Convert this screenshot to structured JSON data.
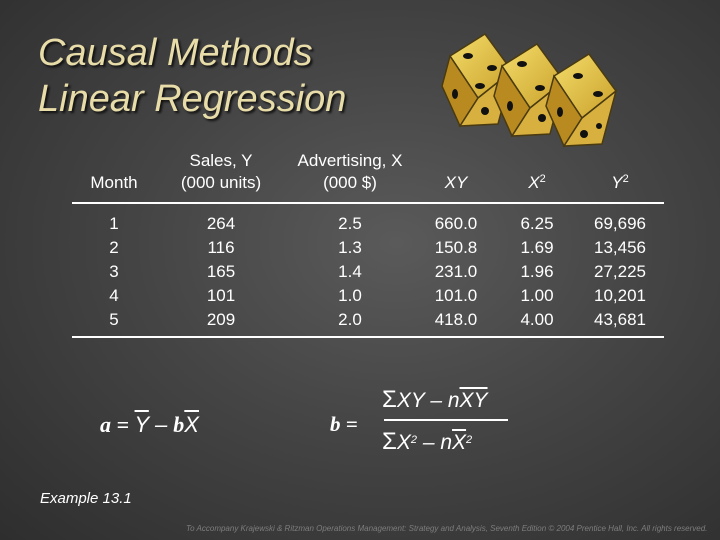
{
  "slide": {
    "title_line1": "Causal Methods",
    "title_line2": "Linear Regression",
    "example_label": "Example 13.1",
    "footer": "To Accompany Krajewski & Ritzman Operations Management: Strategy and Analysis, Seventh Edition © 2004 Prentice Hall, Inc. All rights reserved."
  },
  "table": {
    "headers": {
      "month": "Month",
      "sales_line1": "Sales, Y",
      "sales_line2": "(000 units)",
      "adv_line1": "Advertising, X",
      "adv_line2": "(000 $)",
      "xy": "XY",
      "x2": "X",
      "x2_exp": "2",
      "y2": "Y",
      "y2_exp": "2"
    },
    "rows": [
      {
        "month": "1",
        "sales": "264",
        "advertising": "2.5",
        "xy": "660.0",
        "x2": "6.25",
        "y2": "69,696"
      },
      {
        "month": "2",
        "sales": "116",
        "advertising": "1.3",
        "xy": "150.8",
        "x2": "1.69",
        "y2": "13,456"
      },
      {
        "month": "3",
        "sales": "165",
        "advertising": "1.4",
        "xy": "231.0",
        "x2": "1.96",
        "y2": "27,225"
      },
      {
        "month": "4",
        "sales": "101",
        "advertising": "1.0",
        "xy": "101.0",
        "x2": "1.00",
        "y2": "10,201"
      },
      {
        "month": "5",
        "sales": "209",
        "advertising": "2.0",
        "xy": "418.0",
        "x2": "4.00",
        "y2": "43,681"
      }
    ]
  },
  "formulas": {
    "a": {
      "lhs": "a = ",
      "ybar": "Y",
      "minus": " – ",
      "b": "b",
      "xbar": "X"
    },
    "b": {
      "lhs": "b =",
      "sigma": "Σ",
      "num_term": "XY – ",
      "num_n": "n",
      "num_bars": "XY",
      "den_term": "X",
      "den_exp": "2",
      "den_minus": " – ",
      "den_n": "n",
      "den_bar": "X",
      "den_bar_exp": "2"
    }
  },
  "colors": {
    "title": "#e8dca8",
    "background": "#454545",
    "text": "#ffffff",
    "dice_face": "#e8c84a"
  },
  "decoration": {
    "icon": "dice-icon"
  }
}
